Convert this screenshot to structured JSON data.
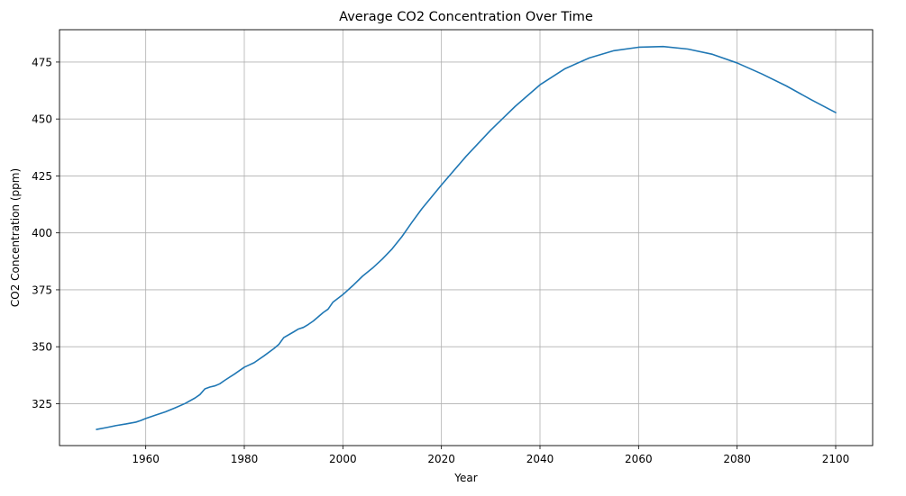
{
  "chart_data": {
    "type": "line",
    "title": "Average CO2 Concentration Over Time",
    "xlabel": "Year",
    "ylabel": "CO2 Concentration (ppm)",
    "xlim": [
      1942.5,
      2107.5
    ],
    "ylim": [
      306.6,
      489.2
    ],
    "xticks": [
      1960,
      1980,
      2000,
      2020,
      2040,
      2060,
      2080,
      2100
    ],
    "yticks": [
      325,
      350,
      375,
      400,
      425,
      450,
      475
    ],
    "grid": true,
    "line_color": "#1f77b4",
    "series": [
      {
        "x": [
          1950,
          1952,
          1954,
          1956,
          1958,
          1959,
          1960,
          1962,
          1964,
          1966,
          1968,
          1970,
          1971,
          1972,
          1973,
          1974,
          1975,
          1976,
          1978,
          1980,
          1981,
          1982,
          1984,
          1986,
          1987,
          1988,
          1990,
          1991,
          1992,
          1993,
          1994,
          1996,
          1997,
          1998,
          2000,
          2002,
          2004,
          2006,
          2008,
          2010,
          2012,
          2014,
          2016,
          2020,
          2025,
          2030,
          2035,
          2040,
          2045,
          2050,
          2055,
          2060,
          2065,
          2070,
          2075,
          2080,
          2085,
          2090,
          2095,
          2100
        ],
        "values": [
          313.7,
          314.5,
          315.4,
          316.1,
          316.9,
          317.6,
          318.5,
          320.0,
          321.4,
          323.2,
          325.1,
          327.5,
          329.0,
          331.5,
          332.3,
          332.8,
          333.7,
          335.2,
          338.0,
          341.0,
          342.0,
          343.0,
          346.0,
          349.2,
          351.0,
          354.0,
          356.5,
          357.8,
          358.5,
          359.8,
          361.3,
          365.0,
          366.5,
          369.6,
          372.9,
          376.8,
          381.0,
          384.5,
          388.5,
          393.0,
          398.4,
          404.6,
          410.5,
          421.0,
          433.6,
          445.1,
          455.6,
          465.0,
          472.0,
          476.8,
          480.0,
          481.5,
          481.8,
          480.7,
          478.4,
          474.6,
          469.8,
          464.5,
          458.5,
          452.8
        ]
      }
    ]
  }
}
